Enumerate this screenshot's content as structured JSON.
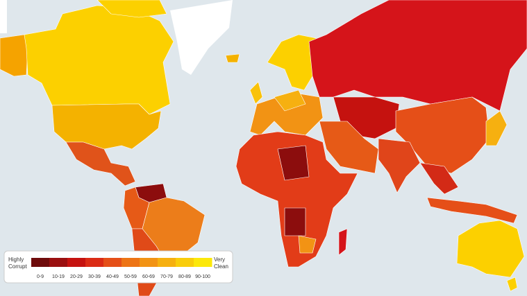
{
  "legend": {
    "low_label": [
      "Highly",
      "Corrupt"
    ],
    "high_label": [
      "Very",
      "Clean"
    ],
    "ranges": [
      "0-9",
      "10-19",
      "20-29",
      "30-39",
      "40-49",
      "50-59",
      "60-69",
      "70-79",
      "80-89",
      "90-100"
    ],
    "colors": [
      "#6e0b0b",
      "#9a0f0f",
      "#c5120f",
      "#db2b15",
      "#e54f18",
      "#ed7415",
      "#f29314",
      "#f6b010",
      "#f9cd0b",
      "#fce80a"
    ]
  }
}
